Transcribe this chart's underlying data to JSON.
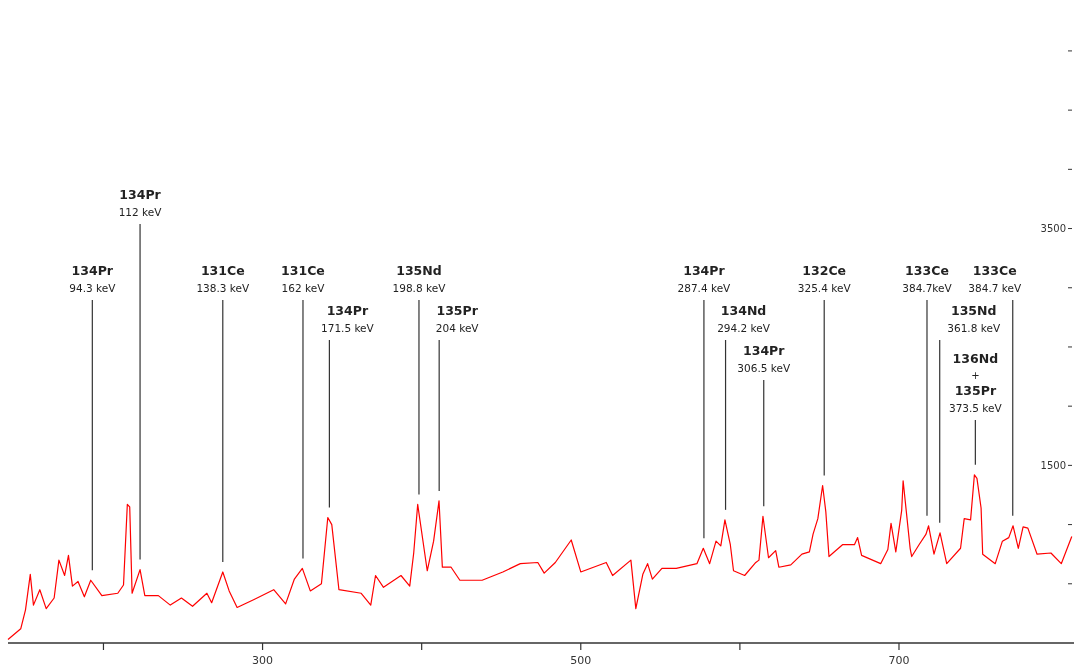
{
  "chart_data": {
    "type": "line",
    "x": [
      140,
      148,
      151,
      154,
      156,
      160,
      164,
      169,
      172,
      175.6,
      178,
      180.5,
      184,
      188,
      192,
      199,
      209,
      212.6,
      215,
      216.5,
      218,
      223,
      226,
      234.5,
      242,
      249,
      256,
      265,
      268,
      275,
      279,
      284,
      295,
      307,
      314.5,
      320,
      325,
      330,
      337,
      341,
      343.5,
      348,
      362,
      368,
      371,
      376,
      387,
      392.5,
      395,
      397.5,
      403.5,
      407.5,
      410.9,
      413,
      418.5,
      424,
      438,
      451,
      462,
      473,
      477,
      484,
      494,
      500,
      516,
      520,
      531.5,
      534.6,
      539,
      542,
      545,
      551,
      560,
      573,
      577,
      581,
      585,
      588,
      590.6,
      594,
      596,
      603,
      610,
      612,
      614.5,
      618,
      622.5,
      624.5,
      632,
      639,
      643.7,
      646,
      649,
      652,
      654,
      656,
      664.5,
      672,
      674,
      676.5,
      688.5,
      693,
      695,
      698,
      701.7,
      702.6,
      707,
      708,
      712.6,
      717,
      718.6,
      722,
      725.8,
      730,
      738.7,
      741,
      745,
      747.4,
      749,
      751.6,
      752.6,
      760.5,
      765,
      769,
      771.7,
      775,
      778,
      781,
      786.8,
      795.5,
      802,
      808.6
    ],
    "series": [
      {
        "color": "#ff0000",
        "values": [
          30,
          120,
          280,
          580,
          320,
          450,
          290,
          380,
          700,
          570,
          740,
          480,
          520,
          390,
          530,
          400,
          420,
          490,
          1170,
          1150,
          420,
          620,
          400,
          400,
          320,
          380,
          310,
          420,
          340,
          600,
          440,
          300,
          370,
          450,
          330,
          540,
          630,
          440,
          500,
          1060,
          1000,
          450,
          420,
          320,
          570,
          470,
          570,
          480,
          760,
          1170,
          610,
          860,
          1200,
          640,
          640,
          530,
          530,
          600,
          670,
          680,
          590,
          680,
          870,
          600,
          680,
          570,
          700,
          290,
          580,
          670,
          540,
          630,
          630,
          670,
          800,
          670,
          860,
          820,
          1040,
          830,
          610,
          570,
          680,
          700,
          1070,
          720,
          780,
          640,
          660,
          750,
          770,
          920,
          1050,
          1330,
          1110,
          730,
          830,
          830,
          890,
          740,
          670,
          790,
          1010,
          770,
          1120,
          1370,
          800,
          730,
          830,
          920,
          990,
          750,
          930,
          670,
          800,
          1050,
          1040,
          1420,
          1390,
          1140,
          750,
          670,
          860,
          890,
          990,
          800,
          980,
          970,
          750,
          760,
          670,
          900
        ]
      }
    ],
    "xlim": [
      140,
      810
    ],
    "xticks": [
      {
        "value": 200,
        "label": null
      },
      300,
      {
        "value": 400,
        "label": null
      },
      500,
      {
        "value": 600,
        "label": null
      },
      700
    ],
    "ylim": [
      0,
      5430
    ],
    "yticks": [
      {
        "value": 500,
        "label": null
      },
      {
        "value": 1000,
        "label": null
      },
      1500,
      {
        "value": 2000,
        "label": null
      },
      {
        "value": 2500,
        "label": null
      },
      {
        "value": 3000,
        "label": null
      },
      3500,
      {
        "value": 4000,
        "label": null
      },
      {
        "value": 4500,
        "label": null
      },
      {
        "value": 5000,
        "label": null
      }
    ],
    "grid": false,
    "ref_lines": [
      {
        "axis": "x",
        "value": 193,
        "label": "134Pr\n94.3 keV",
        "color": "#333333"
      },
      {
        "axis": "x",
        "value": 223,
        "label": "134Pr\n112 keV",
        "color": "#333333"
      },
      {
        "axis": "x",
        "value": 275,
        "label": "131Ce\n138.3 keV",
        "color": "#333333"
      },
      {
        "axis": "x",
        "value": 325.4,
        "label": "131Ce\n162 keV",
        "color": "#333333"
      },
      {
        "axis": "x",
        "value": 342,
        "label": "134Pr\n171.5 keV",
        "color": "#333333"
      },
      {
        "axis": "x",
        "value": 398.3,
        "label": "135Nd\n198.8 keV",
        "color": "#333333"
      },
      {
        "axis": "x",
        "value": 411,
        "label": "135Pr\n204 keV",
        "color": "#333333"
      },
      {
        "axis": "x",
        "value": 577.4,
        "label": "134Pr\n287.4 keV",
        "color": "#333333"
      },
      {
        "axis": "x",
        "value": 591,
        "label": "134Nd\n294.2 keV",
        "color": "#333333"
      },
      {
        "axis": "x",
        "value": 615,
        "label": "134Pr\n306.5 keV",
        "color": "#333333"
      },
      {
        "axis": "x",
        "value": 653,
        "label": "132Ce\n325.4 keV",
        "color": "#333333"
      },
      {
        "axis": "x",
        "value": 717.6,
        "label": "133Ce\n384.7keV",
        "color": "#333333"
      },
      {
        "axis": "x",
        "value": 725.6,
        "label": "135Nd\n361.8 keV",
        "color": "#333333"
      },
      {
        "axis": "x",
        "value": 748,
        "label": "136Nd\n+\n135Pr\n373.5 keV",
        "color": "#333333"
      },
      {
        "axis": "x",
        "value": 771.5,
        "label": "133Ce\n384.7 keV",
        "color": "#333333"
      }
    ]
  }
}
